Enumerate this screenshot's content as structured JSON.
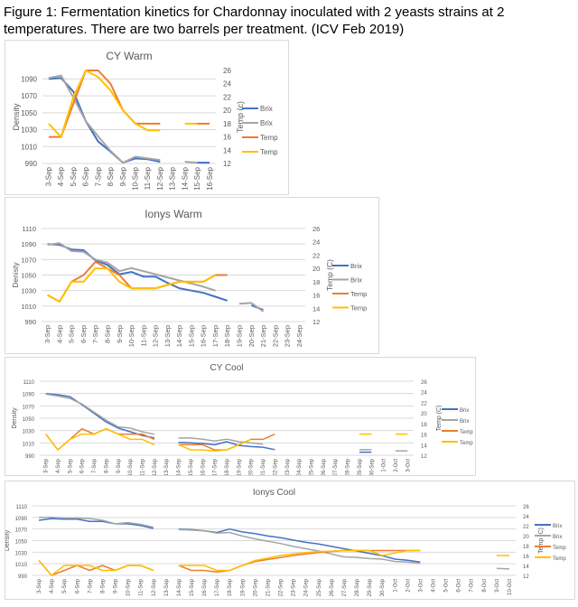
{
  "title": "Figure 1: Fermentation kinetics for Chardonnay inoculated with 2 yeasts strains at 2 temperatures. There are two barrels per treatment. (ICV Feb 2019)",
  "colors": {
    "brix1": "#4472C4",
    "brix2": "#A5A5A5",
    "temp1": "#ED7D31",
    "temp2": "#FFC000"
  },
  "chart_data": [
    {
      "type": "line",
      "title": "CY Warm",
      "ylabel": "Density",
      "y2label": "Temp (c)",
      "ylim": [
        990,
        1100
      ],
      "yticks": [
        990,
        1010,
        1030,
        1050,
        1070,
        1090
      ],
      "y2lim": [
        12,
        26
      ],
      "y2ticks": [
        12,
        14,
        16,
        18,
        20,
        22,
        24,
        26
      ],
      "grid": true,
      "legend": "right",
      "categories": [
        "3-Sep",
        "4-Sep",
        "5-Sep",
        "6-Sep",
        "7-Sep",
        "8-Sep",
        "9-Sep",
        "10-Sep",
        "11-Sep",
        "12-Sep",
        "13-Sep",
        "14-Sep",
        "15-Sep",
        "16-Sep"
      ],
      "series": [
        {
          "name": "Brix",
          "axis": "left",
          "color": "#4472C4",
          "values": [
            1090,
            1091,
            1075,
            1040,
            1016,
            1004,
            991,
            996,
            995,
            992,
            null,
            null,
            991,
            991
          ]
        },
        {
          "name": "Brix",
          "axis": "left",
          "color": "#A5A5A5",
          "values": [
            1091,
            1094,
            1068,
            1040,
            1022,
            1005,
            991,
            998,
            996,
            994,
            null,
            992,
            991,
            null
          ]
        },
        {
          "name": "Temp",
          "axis": "right",
          "color": "#ED7D31",
          "values": [
            16,
            16,
            21,
            26,
            26,
            24,
            20,
            18,
            18,
            18,
            null,
            null,
            18,
            18
          ]
        },
        {
          "name": "Temp",
          "axis": "right",
          "color": "#FFC000",
          "values": [
            18,
            16,
            22,
            26,
            25,
            23,
            20,
            18,
            17,
            17,
            null,
            18,
            18,
            null
          ]
        }
      ]
    },
    {
      "type": "line",
      "title": "Ionys Warm",
      "ylabel": "Denisty",
      "y2label": "Temp (C)",
      "ylim": [
        990,
        1110
      ],
      "yticks": [
        990,
        1010,
        1030,
        1050,
        1070,
        1090,
        1110
      ],
      "y2lim": [
        12,
        26
      ],
      "y2ticks": [
        12,
        14,
        16,
        18,
        20,
        22,
        24,
        26
      ],
      "grid": true,
      "legend": "right",
      "categories": [
        "3-Sep",
        "4-Sep",
        "5-Sep",
        "6-Sep",
        "7-Sep",
        "8-Sep",
        "9-Sep",
        "10-Sep",
        "11-Sep",
        "12-Sep",
        "13-Sep",
        "14-Sep",
        "15-Sep",
        "16-Sep",
        "17-Sep",
        "18-Sep",
        "19-Sep",
        "20-Sep",
        "21-Sep",
        "22-Sep",
        "23-Sep",
        "24-Sep"
      ],
      "series": [
        {
          "name": "Brix",
          "axis": "left",
          "color": "#4472C4",
          "values": [
            1090,
            1089,
            1083,
            1082,
            1069,
            1063,
            1051,
            1054,
            1048,
            1048,
            1040,
            1033,
            1030,
            1027,
            1022,
            1017,
            null,
            1011,
            1005,
            null,
            null,
            null
          ]
        },
        {
          "name": "Brix",
          "axis": "left",
          "color": "#A5A5A5",
          "values": [
            1089,
            1091,
            1081,
            1080,
            1070,
            1066,
            1055,
            1059,
            1055,
            1051,
            1047,
            1043,
            1039,
            1035,
            1030,
            null,
            1013,
            1014,
            1003,
            null,
            null,
            null
          ]
        },
        {
          "name": "Temp",
          "axis": "right",
          "color": "#ED7D31",
          "values": [
            16,
            15,
            18,
            19,
            21,
            20,
            19,
            17,
            17,
            17,
            17.5,
            18,
            18,
            18,
            19,
            19,
            null,
            null,
            null,
            null,
            null,
            null
          ]
        },
        {
          "name": "Temp",
          "axis": "right",
          "color": "#FFC000",
          "values": [
            16,
            15,
            18,
            18,
            20,
            20,
            18,
            17,
            17,
            17,
            17.5,
            18,
            18,
            18,
            19,
            null,
            null,
            null,
            null,
            null,
            null,
            null
          ]
        }
      ]
    },
    {
      "type": "line",
      "title": "CY Cool",
      "ylabel": "Density",
      "y2label": "Temp (C)",
      "ylim": [
        990,
        1110
      ],
      "yticks": [
        990,
        1010,
        1030,
        1050,
        1070,
        1090,
        1110
      ],
      "y2lim": [
        12,
        26
      ],
      "y2ticks": [
        12,
        14,
        16,
        18,
        20,
        22,
        24,
        26
      ],
      "grid": true,
      "legend": "right",
      "categories": [
        "3-Sep",
        "4-Sep",
        "5-Sep",
        "6-Sep",
        "7-Sep",
        "8-Sep",
        "9-Sep",
        "10-Sep",
        "11-Sep",
        "12-Sep",
        "13-Sep",
        "14-Sep",
        "15-Sep",
        "16-Sep",
        "17-Sep",
        "18-Sep",
        "19-Sep",
        "20-Sep",
        "21-Sep",
        "22-Sep",
        "23-Sep",
        "24-Sep",
        "25-Sep",
        "26-Sep",
        "27-Sep",
        "28-Sep",
        "29-Sep",
        "30-Sep",
        "1-Oct",
        "2-Oct",
        "3-Oct"
      ],
      "series": [
        {
          "name": "Brix",
          "axis": "left",
          "color": "#4472C4",
          "values": [
            1090,
            1088,
            1085,
            1072,
            1058,
            1044,
            1034,
            1028,
            1022,
            1018,
            null,
            1011,
            1010,
            1009,
            1007,
            1012,
            1006,
            1004,
            1003,
            999,
            null,
            null,
            null,
            null,
            null,
            null,
            995,
            995,
            null,
            null,
            null
          ]
        },
        {
          "name": "Brix",
          "axis": "left",
          "color": "#A5A5A5",
          "values": [
            1089,
            1086,
            1082,
            1073,
            1060,
            1047,
            1036,
            1034,
            1028,
            1024,
            null,
            1018,
            1018,
            1016,
            1013,
            1016,
            1012,
            1010,
            1008,
            null,
            null,
            null,
            null,
            null,
            null,
            null,
            999,
            999,
            null,
            997,
            997
          ]
        },
        {
          "name": "Temp",
          "axis": "right",
          "color": "#ED7D31",
          "values": [
            16,
            13,
            15,
            17,
            16,
            17,
            16,
            16,
            16,
            15,
            null,
            14,
            14,
            14,
            13,
            13,
            14,
            15,
            15,
            16,
            null,
            null,
            null,
            null,
            null,
            null,
            null,
            null,
            null,
            null,
            null
          ]
        },
        {
          "name": "Temp",
          "axis": "right",
          "color": "#FFC000",
          "values": [
            16,
            13,
            15,
            16,
            16,
            17,
            16,
            15,
            15,
            14,
            null,
            14,
            13,
            13,
            12.8,
            13,
            14,
            15,
            null,
            null,
            null,
            null,
            null,
            null,
            null,
            null,
            16,
            16,
            null,
            16,
            16
          ]
        }
      ]
    },
    {
      "type": "line",
      "title": "Ionys Cool",
      "ylabel": "Density",
      "y2label": "Temp (C)",
      "ylim": [
        990,
        1110
      ],
      "yticks": [
        990,
        1010,
        1030,
        1050,
        1070,
        1090,
        1110
      ],
      "y2lim": [
        12,
        26
      ],
      "y2ticks": [
        12,
        14,
        16,
        18,
        20,
        22,
        24,
        26
      ],
      "grid": true,
      "legend": "right",
      "categories": [
        "3-Sep",
        "4-Sep",
        "5-Sep",
        "6-Sep",
        "7-Sep",
        "8-Sep",
        "9-Sep",
        "10-Sep",
        "11-Sep",
        "12-Sep",
        "13-Sep",
        "14-Sep",
        "15-Sep",
        "16-Sep",
        "17-Sep",
        "18-Sep",
        "19-Sep",
        "20-Sep",
        "21-Sep",
        "22-Sep",
        "23-Sep",
        "24-Sep",
        "25-Sep",
        "26-Sep",
        "27-Sep",
        "28-Sep",
        "29-Sep",
        "30-Sep",
        "1-Oct",
        "2-Oct",
        "3-Oct",
        "4-Oct",
        "5-Oct",
        "6-Oct",
        "7-Oct",
        "8-Oct",
        "9-Oct",
        "10-Oct"
      ],
      "series": [
        {
          "name": "Brix",
          "axis": "left",
          "color": "#4472C4",
          "values": [
            1085,
            1088,
            1087,
            1087,
            1083,
            1083,
            1079,
            1079,
            1076,
            1071,
            null,
            1070,
            1069,
            1067,
            1064,
            1070,
            1065,
            1062,
            1058,
            1055,
            1051,
            1047,
            1044,
            1040,
            1036,
            1032,
            1028,
            1024,
            1018,
            1016,
            1013,
            null,
            null,
            null,
            null,
            null,
            null,
            null
          ]
        },
        {
          "name": "Brix",
          "axis": "left",
          "color": "#A5A5A5",
          "values": [
            1090,
            1090,
            1089,
            1089,
            1088,
            1085,
            1079,
            1081,
            1078,
            1073,
            null,
            1069,
            1068,
            1067,
            1063,
            1064,
            1058,
            1053,
            1049,
            1045,
            1040,
            1036,
            1032,
            1027,
            1022,
            1021,
            1019,
            1018,
            1014,
            1013,
            1011,
            null,
            null,
            null,
            null,
            null,
            1002,
            1001
          ]
        },
        {
          "name": "Temp",
          "axis": "right",
          "color": "#ED7D31",
          "values": [
            15,
            12,
            13,
            14,
            13,
            14,
            13,
            14,
            14,
            13,
            null,
            14,
            13,
            13,
            12.7,
            13,
            14,
            14.8,
            15.2,
            15.6,
            16,
            16.3,
            16.6,
            16.8,
            17,
            17,
            17,
            17,
            17,
            17,
            17,
            null,
            null,
            null,
            null,
            null,
            null,
            null
          ]
        },
        {
          "name": "Temp",
          "axis": "right",
          "color": "#FFC000",
          "values": [
            15,
            12,
            14,
            14,
            14,
            13,
            13,
            14,
            14,
            13,
            null,
            14,
            14,
            14,
            13,
            13,
            14,
            15,
            15.5,
            16,
            16.3,
            16.6,
            16.8,
            16.9,
            17,
            17,
            17,
            16,
            16.5,
            17,
            17,
            null,
            null,
            null,
            null,
            null,
            16,
            16
          ]
        }
      ]
    }
  ]
}
